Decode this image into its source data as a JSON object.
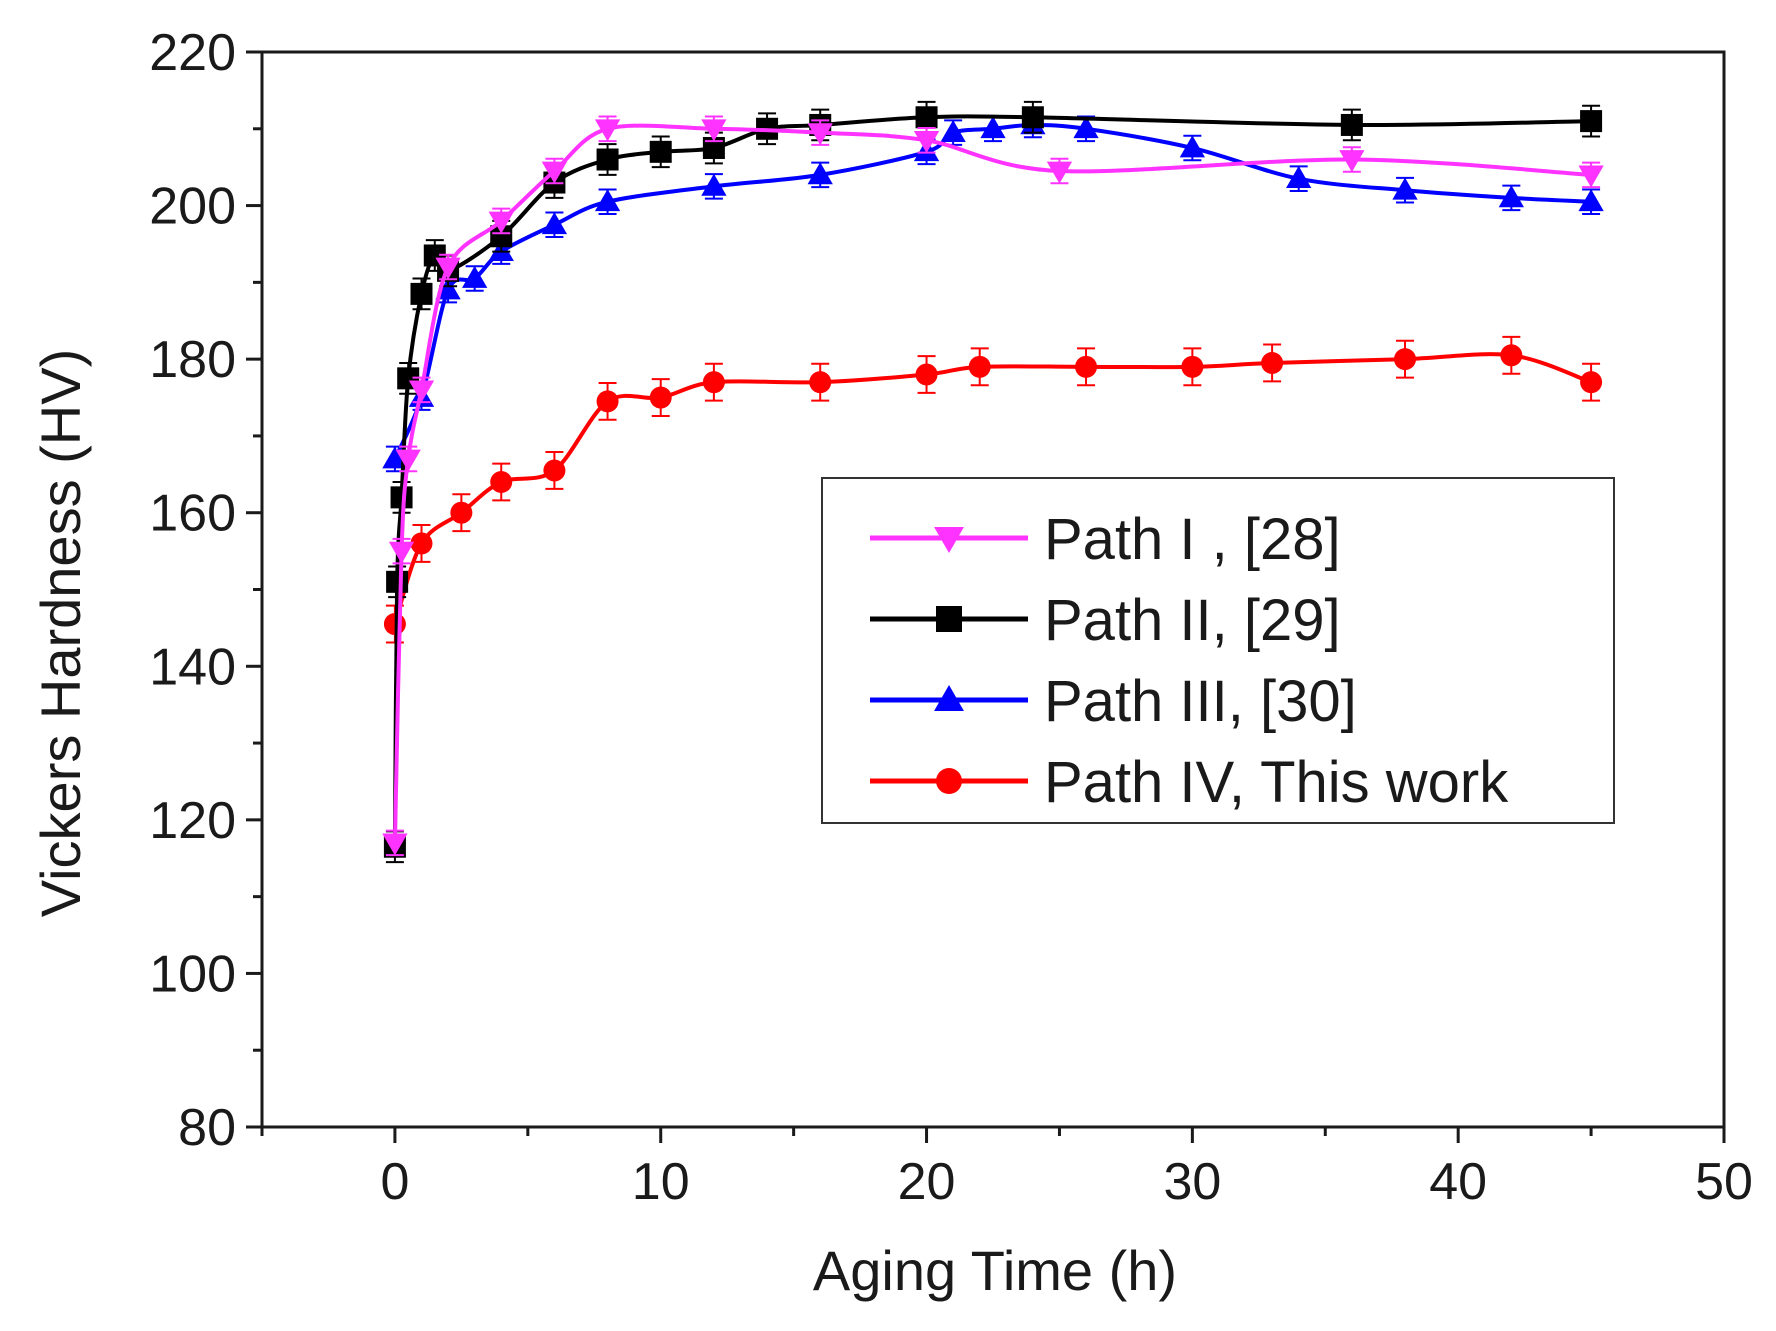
{
  "chart_data": {
    "type": "line",
    "title": "",
    "xlabel": "Aging Time (h)",
    "ylabel": "Vickers Hardness (HV)",
    "xlim": [
      -5,
      50
    ],
    "ylim": [
      80,
      220
    ],
    "xticks": [
      0,
      10,
      20,
      30,
      40,
      50
    ],
    "yticks": [
      80,
      100,
      120,
      140,
      160,
      180,
      200,
      220
    ],
    "legend_position": "center-right",
    "series": [
      {
        "name": "Path I , [28]",
        "color": "#ff33ff",
        "marker": "triangle-down",
        "error": 1.6,
        "x": [
          0,
          0.25,
          0.5,
          1,
          2,
          4,
          6,
          8,
          12,
          16,
          20,
          25,
          36,
          45
        ],
        "y": [
          117,
          155,
          167,
          176,
          192,
          198,
          204.5,
          210,
          210,
          209.5,
          208.5,
          204.5,
          206,
          204
        ]
      },
      {
        "name": "Path II, [29]",
        "color": "#000000",
        "marker": "square",
        "error": 2,
        "x": [
          0,
          0.083,
          0.25,
          0.5,
          1,
          1.5,
          2,
          4,
          6,
          8,
          10,
          12,
          14,
          16,
          20,
          24,
          36,
          45
        ],
        "y": [
          116.5,
          151,
          162,
          177.5,
          188.5,
          193.5,
          191.5,
          196,
          203,
          206,
          207,
          207.5,
          210,
          210.5,
          211.5,
          211.5,
          210.5,
          211
        ]
      },
      {
        "name": "Path III, [30]",
        "color": "#0000ff",
        "marker": "triangle-up",
        "error": 1.6,
        "x": [
          0,
          1,
          2,
          3,
          4,
          6,
          8,
          12,
          16,
          20,
          21,
          22.5,
          24,
          26,
          30,
          34,
          38,
          42,
          45
        ],
        "y": [
          167,
          175,
          189,
          190.5,
          194,
          197.5,
          200.5,
          202.5,
          204,
          207,
          209.5,
          210,
          210.5,
          210,
          207.5,
          203.5,
          202,
          201,
          200.5
        ]
      },
      {
        "name": "Path IV, This work",
        "color": "#ff0000",
        "marker": "circle",
        "error": 2.4,
        "x": [
          0,
          1,
          2.5,
          4,
          6,
          8,
          10,
          12,
          16,
          20,
          22,
          26,
          30,
          33,
          38,
          42,
          45
        ],
        "y": [
          145.5,
          156,
          160,
          164,
          165.5,
          174.5,
          175,
          177,
          177,
          178,
          179,
          179,
          179,
          179.5,
          180,
          180.5,
          177
        ]
      }
    ]
  }
}
